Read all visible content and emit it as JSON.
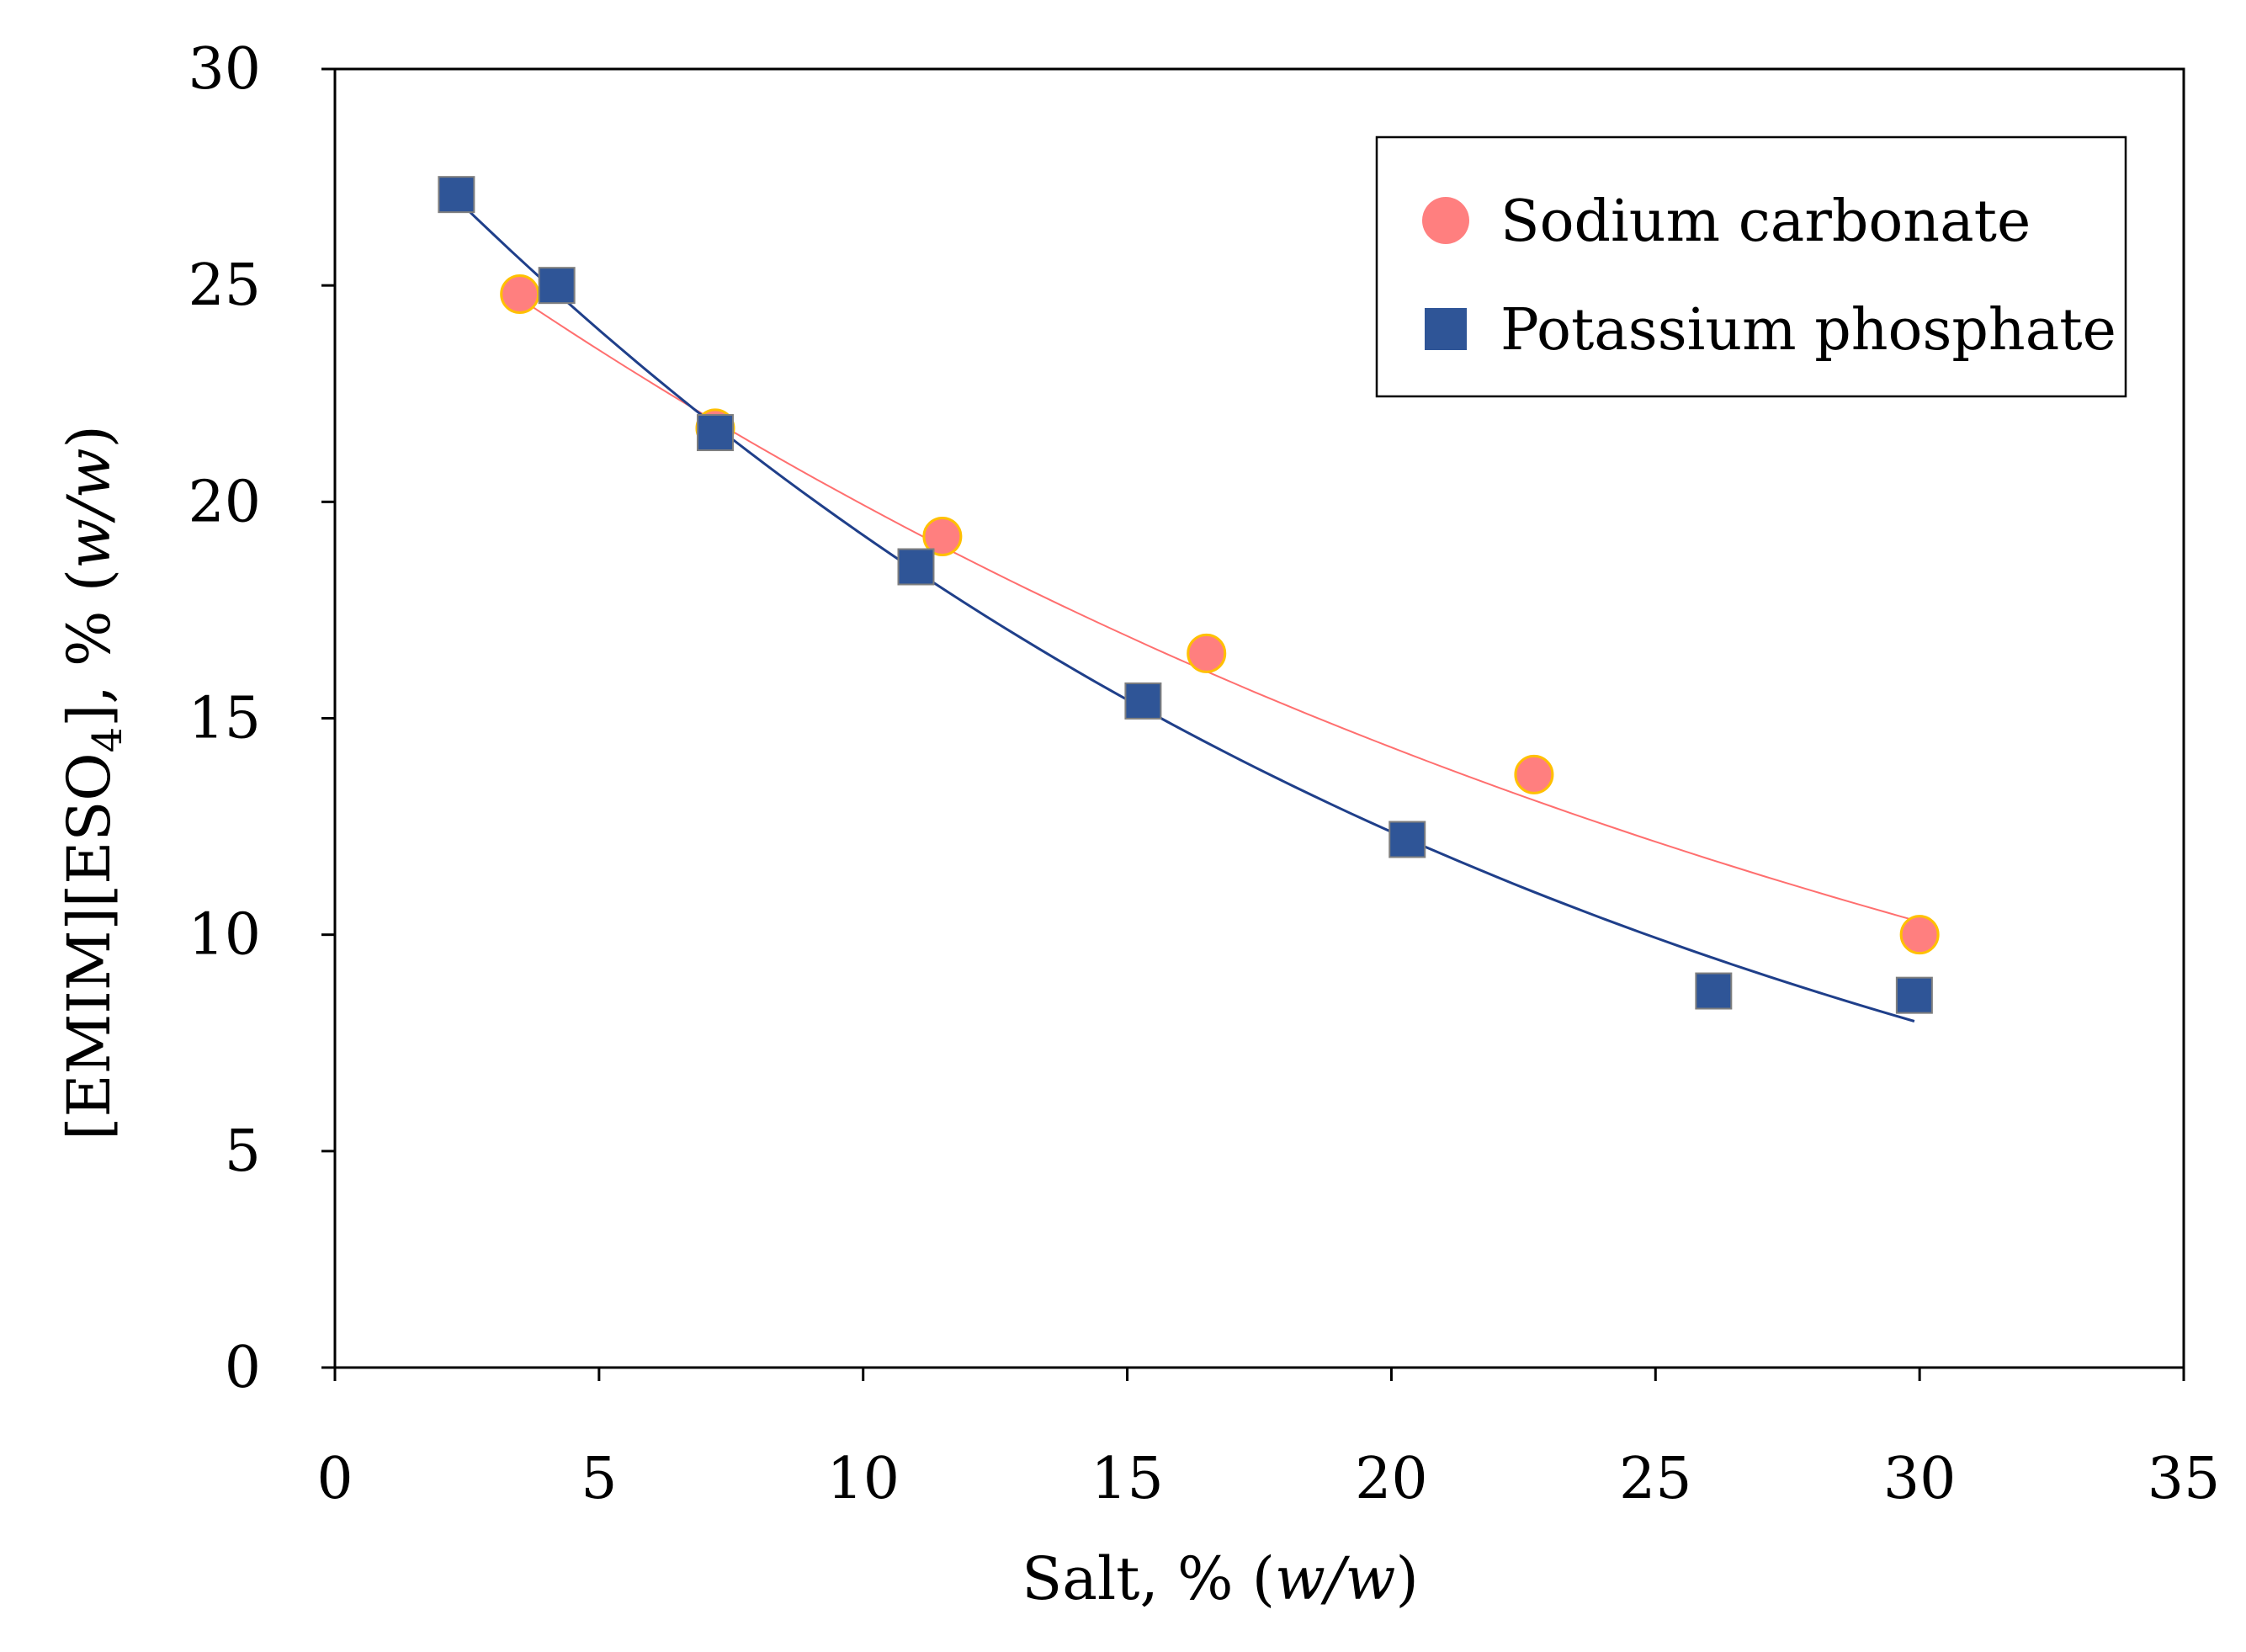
{
  "chart_data": {
    "type": "scatter",
    "title": "",
    "xlabel": {
      "prefix": "Salt, % (",
      "italic": "w/w",
      "suffix": ")"
    },
    "ylabel": {
      "prefix": "[EMIM][ESO",
      "subscript": "4",
      "suffix_a": "], % (",
      "italic": "w/w",
      "suffix_b": ")"
    },
    "xlim": [
      0,
      35
    ],
    "ylim": [
      0,
      30
    ],
    "xticks": [
      "0",
      "5",
      "10",
      "15",
      "20",
      "25",
      "30",
      "35"
    ],
    "yticks": [
      "0",
      "5",
      "10",
      "15",
      "20",
      "25",
      "30"
    ],
    "grid": false,
    "legend_position": "top-right",
    "series": [
      {
        "name": "Sodium carbonate",
        "marker": "circle",
        "color": "#FF7F7F",
        "edge_color": "#FFC000",
        "line_color": "#FF6F6F",
        "x": [
          3.5,
          7.2,
          11.5,
          16.5,
          22.7,
          30.0
        ],
        "y": [
          24.8,
          21.7,
          19.2,
          16.5,
          13.7,
          10.0
        ],
        "fit": {
          "x_start": 3.5,
          "x_end": 30.0,
          "y_start": 24.7,
          "y_end": 10.3
        }
      },
      {
        "name": "Potassium phosphate",
        "marker": "square",
        "color": "#2F5597",
        "edge_color": "#7F7F7F",
        "line_color": "#1F3F8A",
        "x": [
          2.3,
          4.2,
          7.2,
          11.0,
          15.3,
          20.3,
          26.1,
          29.9
        ],
        "y": [
          27.1,
          25.0,
          21.6,
          18.5,
          15.4,
          12.2,
          8.7,
          8.6
        ],
        "fit": {
          "x_start": 2.3,
          "x_end": 29.9,
          "y_start": 27.0,
          "y_end": 8.0
        }
      }
    ]
  }
}
